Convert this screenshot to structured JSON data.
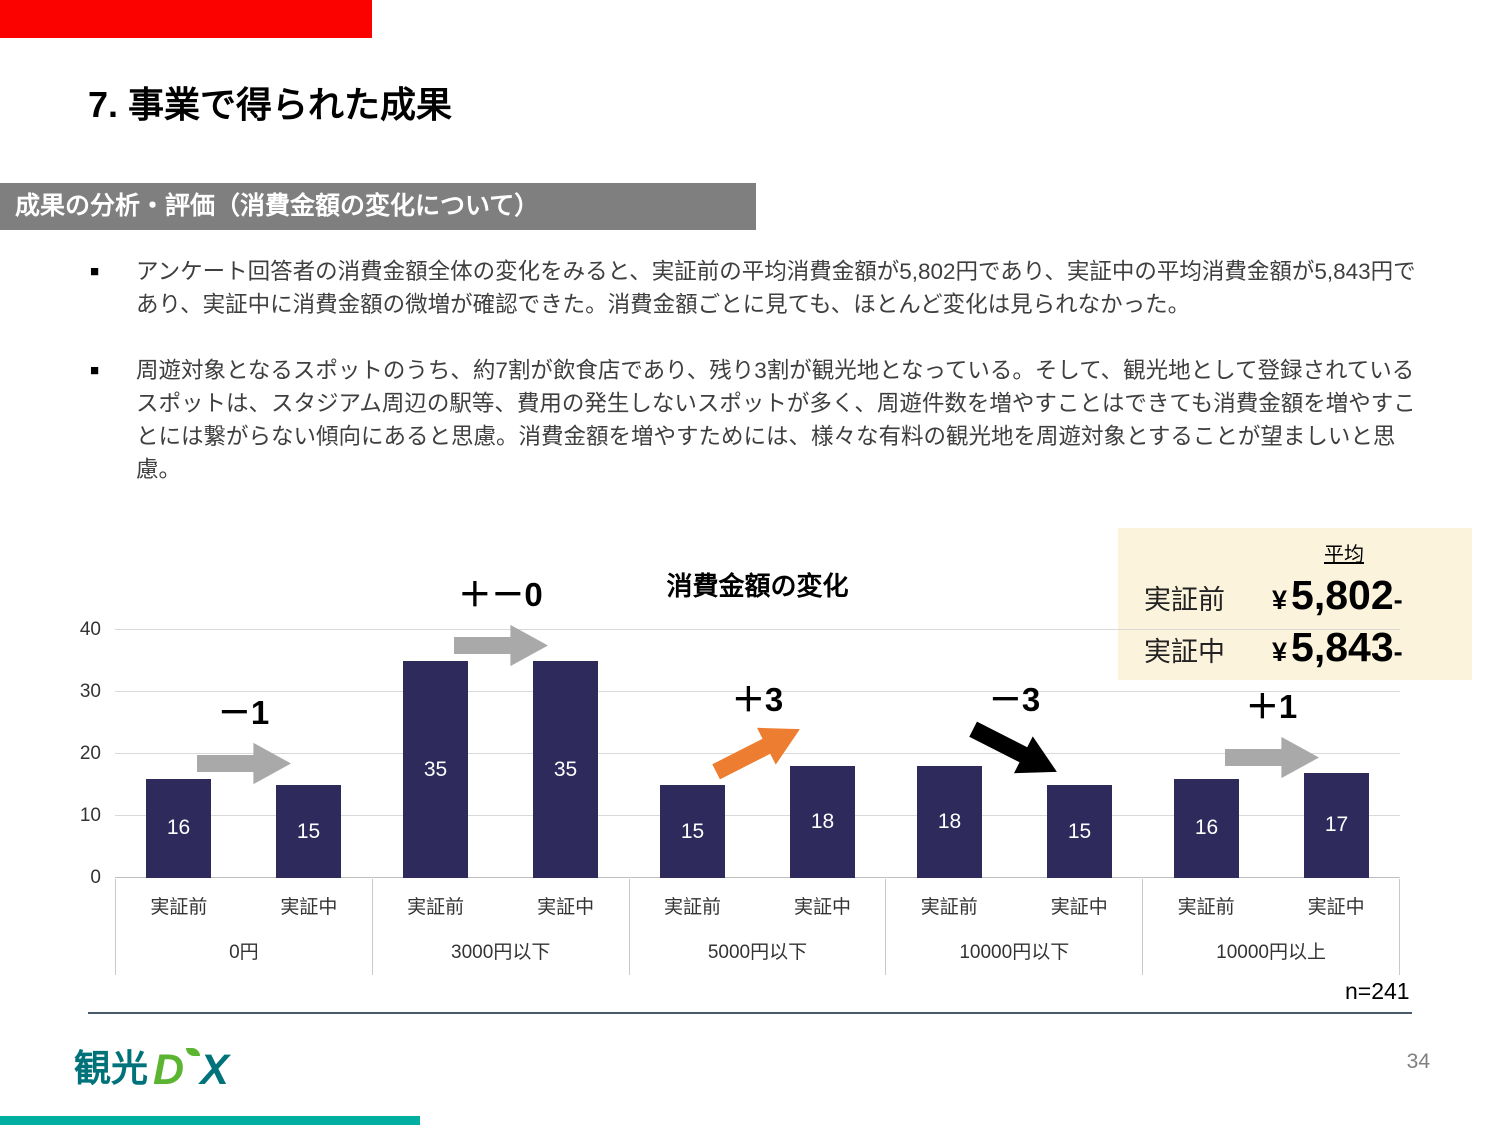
{
  "slide": {
    "title": "7. 事業で得られた成果",
    "section_header": "成果の分析・評価（消費金額の変化について）",
    "bullet_marker": "■",
    "bullets": [
      "アンケート回答者の消費金額全体の変化をみると、実証前の平均消費金額が5,802円であり、実証中の平均消費金額が5,843円であり、実証中に消費金額の微増が確認できた。消費金額ごとに見ても、ほとんど変化は見られなかった。",
      "周遊対象となるスポットのうち、約7割が飲食店であり、残り3割が観光地となっている。そして、観光地として登録されているスポットは、スタジアム周辺の駅等、費用の発生しないスポットが多く、周遊件数を増やすことはできても消費金額を増やすことには繋がらない傾向にあると思慮。消費金額を増やすためには、様々な有料の観光地を周遊対象とすることが望ましいと思慮。"
    ],
    "page_number": "34"
  },
  "logo": {
    "kanji": "観光",
    "d": "D",
    "x": "X"
  },
  "average_box": {
    "title": "平均",
    "bg_color": "#FCF3DC",
    "rows": [
      {
        "label": "実証前",
        "yen": "¥",
        "value": "5,802",
        "dash": "-"
      },
      {
        "label": "実証中",
        "yen": "¥",
        "value": "5,843",
        "dash": "-"
      }
    ]
  },
  "chart_data": {
    "type": "bar",
    "title": "消費金額の変化",
    "categories": [
      "0円",
      "3000円以下",
      "5000円以下",
      "10000円以下",
      "10000円以上"
    ],
    "series_labels": [
      "実証前",
      "実証中"
    ],
    "series": [
      {
        "name": "実証前",
        "values": [
          16,
          35,
          15,
          18,
          16
        ]
      },
      {
        "name": "実証中",
        "values": [
          15,
          35,
          18,
          15,
          17
        ]
      }
    ],
    "deltas": [
      {
        "label": "－1",
        "arrow": "flat",
        "color": "#a9a9a9"
      },
      {
        "label": "＋－0",
        "arrow": "flat",
        "color": "#a9a9a9"
      },
      {
        "label": "＋3",
        "arrow": "up",
        "color": "#ed7d31"
      },
      {
        "label": "－3",
        "arrow": "down",
        "color": "#000000"
      },
      {
        "label": "＋1",
        "arrow": "flat",
        "color": "#a9a9a9"
      }
    ],
    "ylim": [
      0,
      40
    ],
    "yticks": [
      0,
      10,
      20,
      30,
      40
    ],
    "bar_color": "#2e2a5c",
    "grid": true,
    "legend": "none",
    "note": "n=241"
  }
}
